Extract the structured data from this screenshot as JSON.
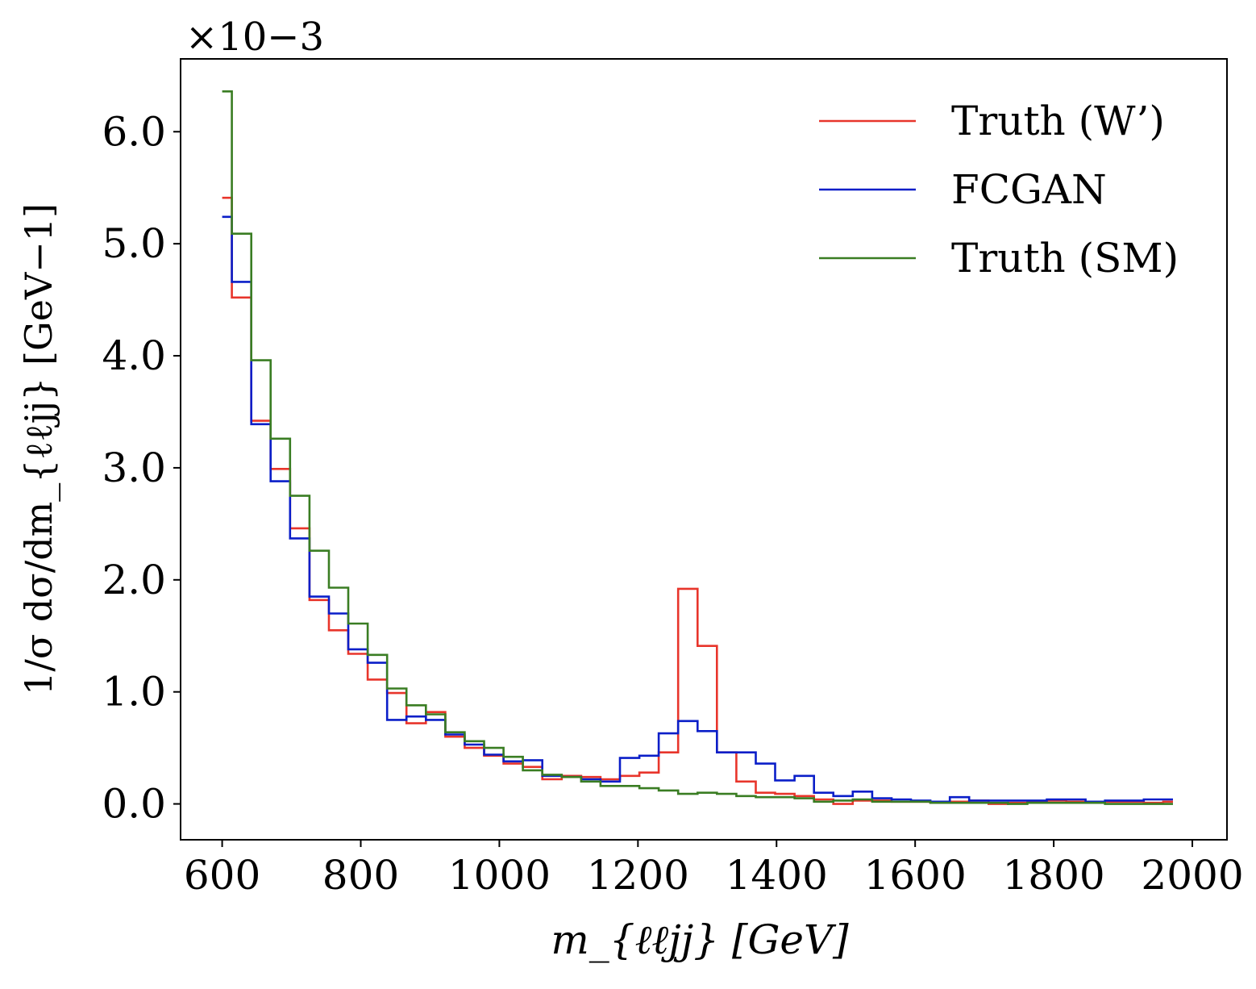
{
  "chart_data": {
    "type": "line",
    "drawstyle": "steps",
    "xlabel": "m_{ℓℓjj} [GeV]",
    "ylabel": "1/σ dσ/dm_{ℓℓjj} [GeV−1]",
    "y_multiplier": "×10−3",
    "xlim": [
      540,
      2050
    ],
    "ylim": [
      -0.32,
      6.65
    ],
    "x_ticks": [
      600,
      800,
      1000,
      1200,
      1400,
      1600,
      1800,
      2000
    ],
    "x_tick_labels": [
      "600",
      "800",
      "1000",
      "1200",
      "1400",
      "1600",
      "1800",
      "2000"
    ],
    "y_ticks": [
      0.0,
      1.0,
      2.0,
      3.0,
      4.0,
      5.0,
      6.0
    ],
    "y_tick_labels": [
      "0.0",
      "1.0",
      "2.0",
      "3.0",
      "4.0",
      "5.0",
      "6.0"
    ],
    "grid": false,
    "legend_position": "top-right",
    "bin_edges": [
      600,
      614,
      642,
      670,
      698,
      726,
      754,
      782,
      810,
      838,
      866,
      894,
      922,
      950,
      978,
      1006,
      1034,
      1062,
      1090,
      1118,
      1146,
      1174,
      1202,
      1230,
      1258,
      1286,
      1314,
      1342,
      1370,
      1398,
      1426,
      1454,
      1482,
      1510,
      1538,
      1566,
      1594,
      1622,
      1650,
      1678,
      1706,
      1734,
      1762,
      1790,
      1818,
      1846,
      1874,
      1902,
      1930,
      1958,
      1972
    ],
    "series": [
      {
        "name": "Truth (W’)",
        "color": "#e8352b",
        "values": [
          5.41,
          4.52,
          3.42,
          2.99,
          2.46,
          1.82,
          1.55,
          1.34,
          1.11,
          0.99,
          0.72,
          0.82,
          0.6,
          0.5,
          0.43,
          0.36,
          0.33,
          0.22,
          0.25,
          0.24,
          0.22,
          0.25,
          0.28,
          0.46,
          1.92,
          1.41,
          0.46,
          0.2,
          0.1,
          0.09,
          0.07,
          0.04,
          0.0,
          0.03,
          0.03,
          0.02,
          0.02,
          0.01,
          0.02,
          0.03,
          0.0,
          0.01,
          0.02,
          0.03,
          0.02,
          0.02,
          0.02,
          0.02,
          0.01,
          0.02
        ]
      },
      {
        "name": "FCGAN",
        "color": "#0a1ec8",
        "values": [
          5.24,
          4.66,
          3.39,
          2.88,
          2.37,
          1.85,
          1.7,
          1.38,
          1.26,
          0.75,
          0.78,
          0.75,
          0.62,
          0.53,
          0.44,
          0.38,
          0.39,
          0.25,
          0.24,
          0.22,
          0.2,
          0.41,
          0.43,
          0.63,
          0.74,
          0.65,
          0.46,
          0.46,
          0.36,
          0.21,
          0.25,
          0.1,
          0.07,
          0.11,
          0.05,
          0.04,
          0.03,
          0.02,
          0.06,
          0.03,
          0.03,
          0.03,
          0.03,
          0.04,
          0.04,
          0.02,
          0.03,
          0.03,
          0.04,
          0.04
        ]
      },
      {
        "name": "Truth (SM)",
        "color": "#3a7d23",
        "values": [
          6.36,
          5.09,
          3.96,
          3.26,
          2.75,
          2.26,
          1.93,
          1.61,
          1.33,
          1.03,
          0.88,
          0.8,
          0.64,
          0.56,
          0.5,
          0.42,
          0.3,
          0.26,
          0.24,
          0.2,
          0.16,
          0.16,
          0.14,
          0.12,
          0.09,
          0.1,
          0.09,
          0.07,
          0.06,
          0.06,
          0.05,
          0.02,
          0.03,
          0.04,
          0.02,
          0.02,
          0.02,
          0.01,
          0.01,
          0.01,
          0.01,
          0.0,
          0.01,
          0.01,
          0.01,
          0.01,
          0.0,
          0.0,
          0.0,
          0.0
        ]
      }
    ]
  }
}
